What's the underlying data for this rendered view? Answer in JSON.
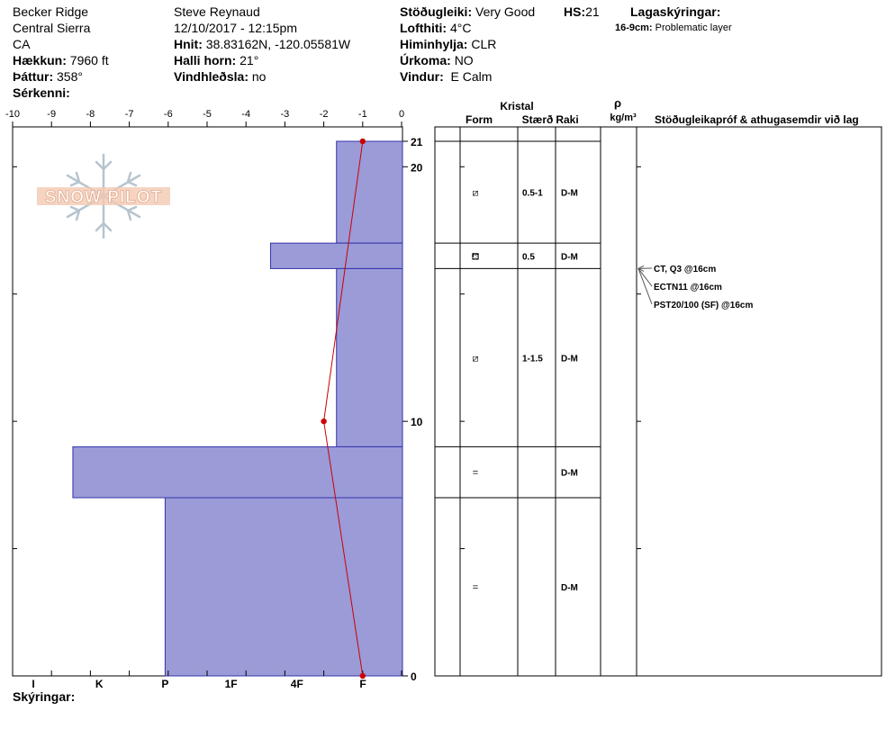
{
  "header": {
    "location": [
      "Becker Ridge",
      "Central Sierra",
      "CA"
    ],
    "elevation_label": "Hækkun:",
    "elevation_value": "7960 ft",
    "aspect_label": "Þáttur:",
    "aspect_value": "358°",
    "features_label": "Sérkenni:",
    "observer": "Steve Reynaud",
    "datetime": "12/10/2017 - 12:15pm",
    "coords_label": "Hnit:",
    "coords_value": "38.83162N, -120.05581W",
    "slope_label": "Halli horn:",
    "slope_value": "21°",
    "wind_loading_label": "Vindhleðsla:",
    "wind_loading_value": "no",
    "stability_label": "Stöðugleiki:",
    "stability_value": "Very Good",
    "hs_label": "HS:",
    "hs_value": "21",
    "air_temp_label": "Lofthiti:",
    "air_temp_value": "4°C",
    "sky_label": "Himinhylja:",
    "sky_value": "CLR",
    "precip_label": "Úrkoma:",
    "precip_value": "NO",
    "wind_label": "Vindur:",
    "wind_value": "E Calm",
    "legend_title": "Lagaskýringar:",
    "legend_range": "16-9cm:",
    "legend_text": "Problematic layer"
  },
  "footer": {
    "notes_label": "Skýringar:"
  },
  "logo": {
    "text": "SNOW PILOT"
  },
  "table": {
    "crystal_label": "Kristal",
    "form_label": "Form",
    "size_label": "Stærð",
    "moisture_label": "Raki",
    "density_symbol": "ρ",
    "density_unit": "kg/m³",
    "tests_label": "Stöðugleikapróf & athugasemdir við lag",
    "layers": [
      {
        "top": 21,
        "bottom": 17,
        "form": "⧄",
        "size": "0.5-1",
        "moisture": "D-M"
      },
      {
        "top": 17,
        "bottom": 16,
        "form": "⛾",
        "size": "0.5",
        "moisture": "D-M"
      },
      {
        "top": 16,
        "bottom": 9,
        "form": "⧄",
        "size": "1-1.5",
        "moisture": "D-M"
      },
      {
        "top": 9,
        "bottom": 7,
        "form": "=",
        "size": "",
        "moisture": "D-M"
      },
      {
        "top": 7,
        "bottom": 0,
        "form": "=",
        "size": "",
        "moisture": "D-M"
      }
    ],
    "tests": [
      "CT, Q3 @16cm",
      "ECTN11 @16cm",
      "PST20/100 (SF) @16cm"
    ]
  },
  "chart_data": {
    "type": "bar",
    "temp_axis": {
      "range": [
        -10,
        0
      ],
      "ticks": [
        -10,
        -9,
        -8,
        -7,
        -6,
        -5,
        -4,
        -3,
        -2,
        -1,
        0
      ]
    },
    "height_axis": {
      "range": [
        0,
        21
      ],
      "labels": [
        21,
        20,
        10,
        0
      ]
    },
    "hardness_axis": {
      "labels": [
        "I",
        "K",
        "P",
        "1F",
        "4F",
        "F"
      ],
      "values": [
        5,
        4,
        3,
        2,
        1,
        0
      ]
    },
    "hardness_layers": [
      {
        "top": 21,
        "bottom": 17,
        "hardness": 0.4
      },
      {
        "top": 17,
        "bottom": 16,
        "hardness": 1.4
      },
      {
        "top": 16,
        "bottom": 9,
        "hardness": 0.4
      },
      {
        "top": 9,
        "bottom": 7,
        "hardness": 4.4
      },
      {
        "top": 7,
        "bottom": 0,
        "hardness": 3.0
      }
    ],
    "temperature_profile": [
      {
        "height": 21,
        "temp": -1.0
      },
      {
        "height": 10,
        "temp": -2.0
      },
      {
        "height": 0,
        "temp": -1.0
      }
    ],
    "colors": {
      "bars": "#9b9bd8",
      "bar_edge": "#3333aa",
      "temp_line": "#cc0000"
    }
  }
}
